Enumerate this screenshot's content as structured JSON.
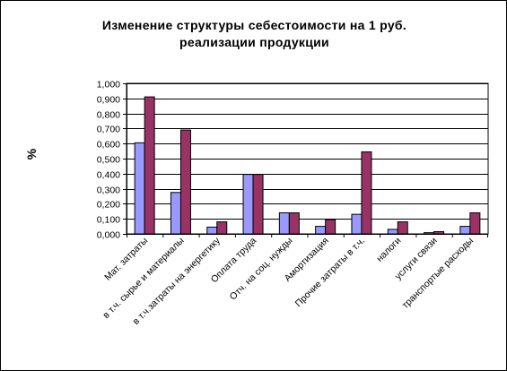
{
  "chart_data": {
    "type": "bar",
    "title": [
      "Изменение структуры себестоимости на 1 руб.",
      "реализации продукции"
    ],
    "ylabel": "%",
    "ylim": [
      0,
      1
    ],
    "yticks": [
      "0,000",
      "0,100",
      "0,200",
      "0,300",
      "0,400",
      "0,500",
      "0,600",
      "0,700",
      "0,800",
      "0,900",
      "1,000"
    ],
    "grid": "horizontal",
    "categories": [
      "Мат. затраты",
      "в т.ч. сырье и материалы",
      "в т.ч.затраты на энергетику",
      "Оплата труда",
      "Отч. на соц. нужды",
      "Амортизация",
      "Прочие затраты в т.ч.",
      "налоги",
      "услуги связи",
      "транспортые расходы"
    ],
    "series": [
      {
        "values": [
          0.605,
          0.275,
          0.045,
          0.395,
          0.14,
          0.05,
          0.13,
          0.03,
          0.008,
          0.05
        ]
      },
      {
        "values": [
          0.91,
          0.69,
          0.08,
          0.395,
          0.14,
          0.095,
          0.545,
          0.08,
          0.015,
          0.14
        ]
      }
    ],
    "colors": [
      "#9999ff",
      "#993366"
    ]
  }
}
